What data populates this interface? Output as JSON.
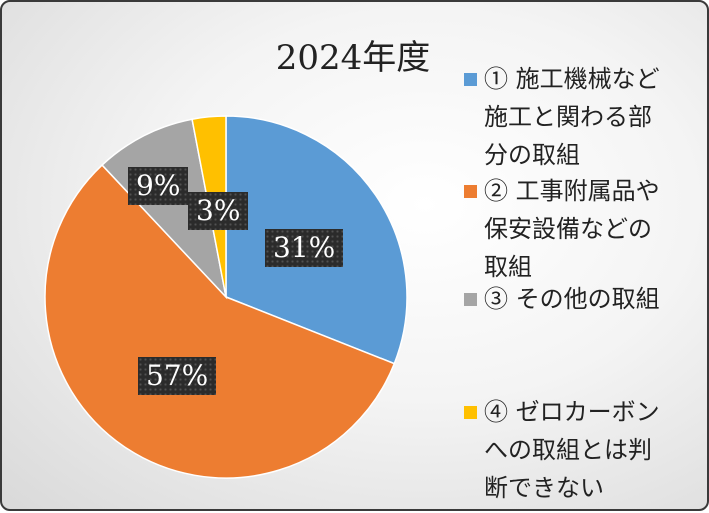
{
  "chart_data": {
    "type": "pie",
    "title": "2024年度",
    "slices": [
      {
        "label": "① 施工機械など\n施工と関わる部\n分の取組",
        "value": 31,
        "display": "31%",
        "color": "#5b9bd5"
      },
      {
        "label": "② 工事附属品や\n保安設備などの\n取組",
        "value": 57,
        "display": "57%",
        "color": "#ed7d31"
      },
      {
        "label": "③ その他の取組",
        "value": 9,
        "display": "9%",
        "color": "#a5a5a5"
      },
      {
        "label": "④ ゼロカーボン\nへの取組とは判\n断できない",
        "value": 3,
        "display": "3%",
        "color": "#ffc000"
      }
    ],
    "legend_position": "right"
  }
}
